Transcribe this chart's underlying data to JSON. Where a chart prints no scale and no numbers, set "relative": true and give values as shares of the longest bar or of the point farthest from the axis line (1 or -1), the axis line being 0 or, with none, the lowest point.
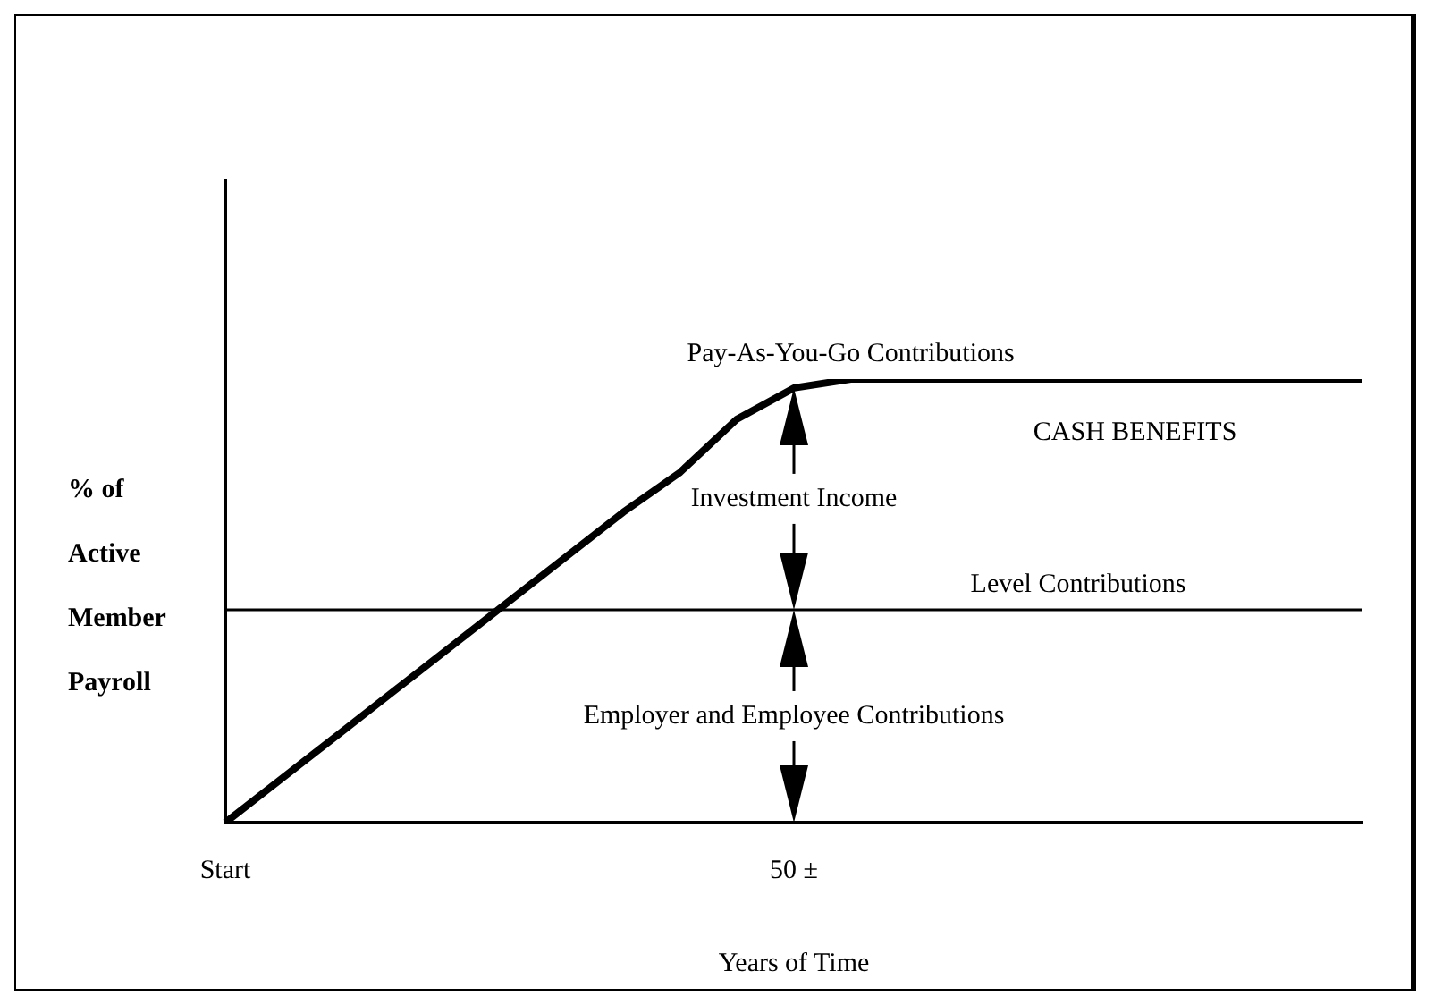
{
  "chart_data": {
    "type": "line",
    "relative": true,
    "xlabel": "Years of Time",
    "ylabel": "% of Active Member Payroll",
    "categories": [
      "Start",
      null,
      null,
      null,
      null,
      null,
      null,
      null,
      null,
      null,
      "50 ±",
      null,
      null,
      null,
      null,
      null,
      null,
      null,
      null,
      null,
      null
    ],
    "series": [
      {
        "name": "CASH BENEFITS",
        "color": "#000000",
        "values": [
          0,
          0.1,
          0.2,
          0.3,
          0.4,
          0.5,
          0.6,
          0.7,
          0.79,
          0.91,
          0.98,
          1,
          1,
          1,
          1,
          1,
          1,
          1,
          1,
          1,
          1
        ]
      }
    ],
    "ref_lines": [
      {
        "axis": "y",
        "value": 0.48,
        "label": "Level Contributions"
      }
    ],
    "annotations": [
      "Pay-As-You-Go Contributions",
      "Investment Income",
      "Employer and Employee Contributions"
    ]
  }
}
